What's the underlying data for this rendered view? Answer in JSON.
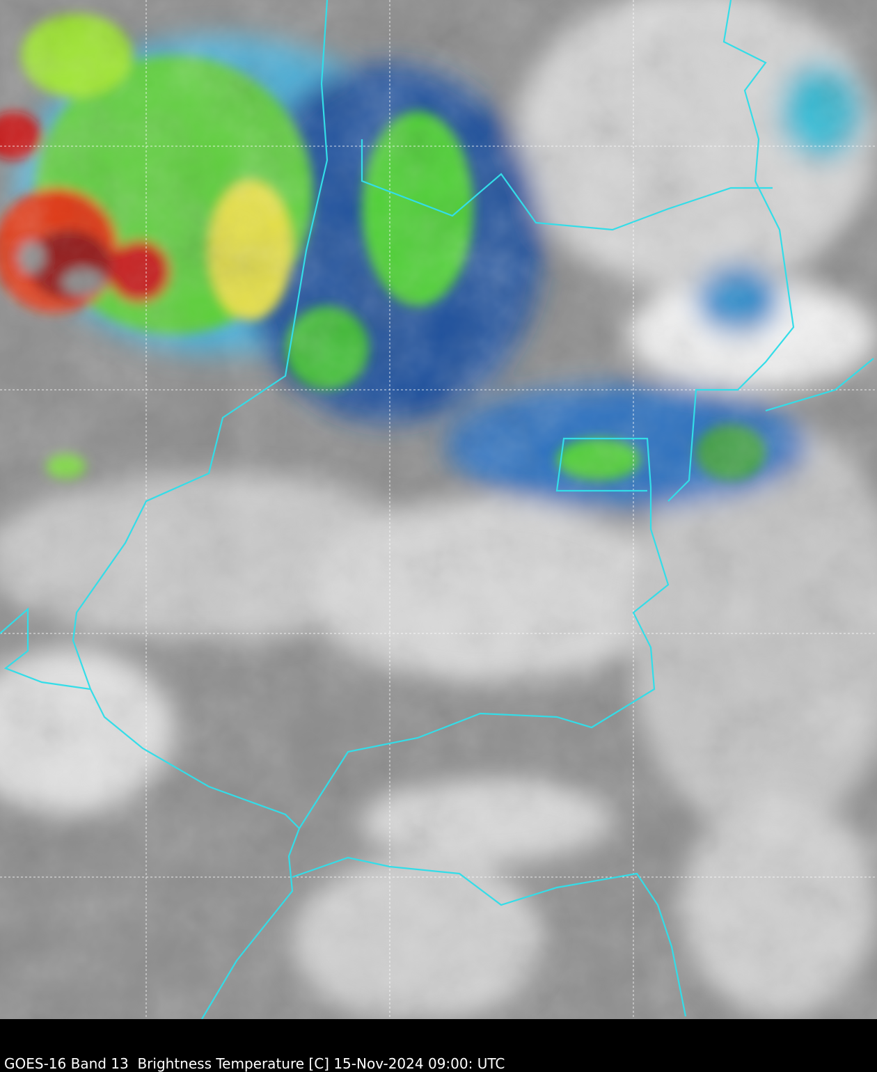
{
  "caption": "GOES-16 Band 13  Brightness Temperature [C] 15-Nov-2024 09:00: UTC"
}
